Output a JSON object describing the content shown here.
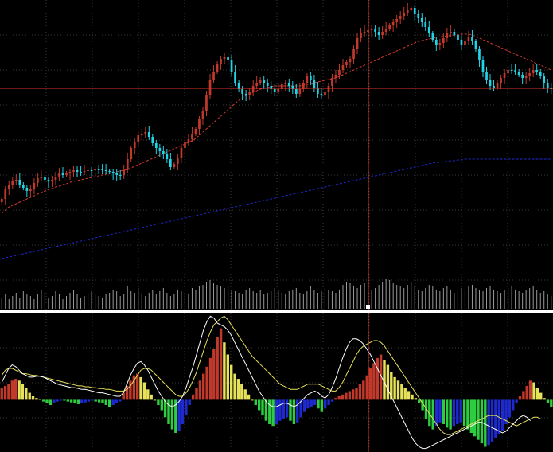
{
  "chart_data": [
    {
      "type": "candlestick",
      "panel": "price",
      "title": "",
      "grid": true,
      "colors": {
        "background": "#000000",
        "grid": "#3a3a3a",
        "bull_candle": "#c0392b",
        "bear_candle": "#22d3e6",
        "ma_fast": "#d63a2e",
        "ma_slow": "#1e2ad0",
        "crosshair": "#e0342a",
        "volume": "#9a9a9a"
      },
      "ylim": [
        0,
        390
      ],
      "closes": [
        250,
        238,
        232,
        228,
        226,
        232,
        236,
        240,
        238,
        230,
        224,
        222,
        226,
        228,
        226,
        222,
        218,
        220,
        218,
        216,
        214,
        216,
        216,
        215,
        214,
        214,
        213,
        213,
        214,
        215,
        216,
        218,
        220,
        220,
        214,
        200,
        186,
        178,
        170,
        168,
        166,
        172,
        180,
        186,
        190,
        194,
        200,
        210,
        206,
        198,
        186,
        178,
        175,
        168,
        162,
        150,
        140,
        120,
        100,
        90,
        80,
        74,
        72,
        76,
        90,
        104,
        112,
        118,
        120,
        116,
        108,
        104,
        100,
        104,
        108,
        112,
        116,
        112,
        106,
        104,
        108,
        112,
        118,
        112,
        104,
        96,
        100,
        110,
        118,
        120,
        116,
        108,
        98,
        94,
        88,
        82,
        78,
        74,
        62,
        48,
        42,
        40,
        38,
        36,
        40,
        44,
        40,
        36,
        32,
        28,
        24,
        20,
        16,
        12,
        10,
        18,
        22,
        28,
        34,
        42,
        50,
        56,
        54,
        48,
        42,
        40,
        44,
        50,
        56,
        52,
        46,
        52,
        62,
        76,
        90,
        100,
        108,
        110,
        104,
        98,
        92,
        88,
        88,
        90,
        94,
        98,
        96,
        92,
        88,
        90,
        96,
        104,
        110,
        112
      ],
      "ma_fast": [
        268,
        264,
        260,
        258,
        256,
        254,
        252,
        250,
        248,
        246,
        244,
        242,
        240,
        238,
        237,
        235,
        234,
        232,
        231,
        229,
        228,
        227,
        226,
        225,
        224,
        223,
        222,
        221,
        220,
        219,
        218,
        217,
        216,
        215,
        214,
        213,
        211,
        209,
        207,
        205,
        203,
        201,
        199,
        197,
        195,
        193,
        191,
        189,
        187,
        185,
        183,
        181,
        179,
        177,
        174,
        170,
        166,
        162,
        158,
        154,
        150,
        146,
        142,
        138,
        134,
        130,
        126,
        123,
        120,
        118,
        116,
        114,
        112,
        111,
        110,
        109,
        108,
        108,
        108,
        108,
        108,
        108,
        108,
        108,
        107,
        106,
        105,
        104,
        103,
        102,
        101,
        100,
        99,
        98,
        96,
        94,
        92,
        90,
        88,
        86,
        84,
        82,
        80,
        78,
        76,
        74,
        72,
        70,
        68,
        66,
        64,
        62,
        60,
        58,
        56,
        54,
        52,
        51,
        50,
        49,
        48,
        47,
        46,
        46,
        45,
        45,
        44,
        44,
        43,
        43,
        43,
        44,
        46,
        48,
        50,
        52,
        54,
        56,
        58,
        60,
        62,
        64,
        66,
        68,
        70,
        72,
        74,
        76,
        78,
        80,
        82,
        84,
        86,
        88
      ],
      "ma_slow": [
        325,
        324,
        323,
        322,
        321,
        320,
        319,
        318,
        317,
        316,
        315,
        314,
        313,
        312,
        311,
        310,
        309,
        308,
        307,
        306,
        305,
        304,
        303,
        302,
        301,
        300,
        299,
        298,
        297,
        296,
        295,
        294,
        293,
        292,
        291,
        290,
        289,
        288,
        287,
        286,
        285,
        284,
        283,
        282,
        281,
        280,
        279,
        278,
        277,
        276,
        275,
        274,
        273,
        272,
        271,
        270,
        269,
        268,
        267,
        266,
        265,
        264,
        263,
        262,
        261,
        260,
        259,
        258,
        257,
        256,
        255,
        254,
        253,
        252,
        251,
        250,
        249,
        248,
        247,
        246,
        245,
        244,
        243,
        242,
        241,
        240,
        239,
        238,
        237,
        236,
        235,
        234,
        233,
        232,
        231,
        230,
        229,
        228,
        227,
        226,
        225,
        224,
        223,
        222,
        221,
        220,
        219,
        218,
        217,
        216,
        215,
        214,
        213,
        212,
        211,
        210,
        209,
        208,
        207,
        206,
        205,
        204,
        204,
        203,
        203,
        202,
        202,
        201,
        201,
        200,
        200,
        200,
        200,
        200,
        200,
        200,
        200,
        200,
        200,
        200,
        200,
        200,
        200,
        200,
        200,
        200,
        200,
        200,
        200,
        200,
        200,
        200,
        200,
        200
      ],
      "volume": [
        14,
        18,
        12,
        16,
        20,
        14,
        22,
        18,
        16,
        12,
        18,
        24,
        20,
        14,
        16,
        22,
        18,
        12,
        16,
        20,
        24,
        18,
        14,
        16,
        20,
        22,
        18,
        16,
        14,
        18,
        20,
        24,
        22,
        16,
        18,
        28,
        22,
        20,
        26,
        18,
        16,
        20,
        24,
        18,
        22,
        26,
        20,
        16,
        18,
        24,
        22,
        20,
        18,
        26,
        24,
        28,
        30,
        34,
        36,
        32,
        30,
        28,
        26,
        30,
        24,
        22,
        20,
        18,
        24,
        26,
        22,
        20,
        24,
        18,
        20,
        22,
        26,
        24,
        20,
        18,
        22,
        24,
        26,
        20,
        18,
        22,
        28,
        24,
        20,
        22,
        26,
        24,
        22,
        20,
        24,
        30,
        34,
        32,
        28,
        26,
        30,
        32,
        28,
        24,
        26,
        30,
        34,
        38,
        36,
        32,
        30,
        28,
        26,
        30,
        34,
        28,
        24,
        22,
        26,
        30,
        28,
        24,
        22,
        26,
        28,
        24,
        20,
        22,
        26,
        24,
        28,
        30,
        26,
        24,
        22,
        26,
        28,
        24,
        22,
        20,
        24,
        26,
        28,
        24,
        22,
        20,
        24,
        26,
        28,
        24,
        20,
        22,
        18,
        16
      ]
    },
    {
      "type": "macd",
      "panel": "oscillator",
      "title": "",
      "grid": true,
      "colors": {
        "pos_rising": "#c0392b",
        "pos_falling": "#e6e25a",
        "neg_falling": "#2ecc40",
        "neg_rising": "#1e2ad0",
        "signal_line": "#e6e25a",
        "macd_line": "#ffffff"
      },
      "ylim": [
        -60,
        100
      ],
      "histogram": [
        14,
        16,
        18,
        22,
        24,
        22,
        18,
        14,
        8,
        4,
        2,
        1,
        -2,
        -4,
        -6,
        -4,
        -2,
        -1,
        -1,
        -2,
        -3,
        -4,
        -5,
        -4,
        -3,
        -2,
        -1,
        -2,
        -3,
        -4,
        -6,
        -8,
        -6,
        -4,
        -2,
        8,
        16,
        22,
        28,
        30,
        26,
        20,
        12,
        6,
        0,
        -6,
        -12,
        -20,
        -28,
        -34,
        -38,
        -36,
        -28,
        -18,
        -6,
        6,
        14,
        22,
        30,
        38,
        48,
        58,
        72,
        82,
        66,
        52,
        40,
        30,
        24,
        18,
        12,
        6,
        0,
        -6,
        -12,
        -18,
        -24,
        -28,
        -30,
        -28,
        -24,
        -22,
        -20,
        -24,
        -28,
        -26,
        -20,
        -14,
        -10,
        -8,
        -6,
        -10,
        -14,
        -10,
        -6,
        -2,
        2,
        4,
        6,
        8,
        10,
        12,
        14,
        18,
        22,
        28,
        36,
        42,
        48,
        52,
        46,
        40,
        32,
        26,
        22,
        18,
        14,
        10,
        6,
        2,
        -4,
        -12,
        -22,
        -30,
        -34,
        -30,
        -26,
        -28,
        -32,
        -34,
        -30,
        -28,
        -26,
        -30,
        -34,
        -38,
        -42,
        -46,
        -50,
        -54,
        -52,
        -48,
        -44,
        -40,
        -36,
        -28,
        -20,
        -12,
        -4,
        4,
        10,
        16,
        22,
        20,
        14,
        8,
        2,
        -4,
        -8
      ],
      "signal": [
        28,
        34,
        36,
        36,
        34,
        32,
        30,
        30,
        29,
        28,
        28,
        27,
        26,
        25,
        24,
        23,
        22,
        21,
        20,
        19,
        18,
        17,
        16,
        16,
        15,
        15,
        14,
        14,
        13,
        13,
        12,
        12,
        11,
        10,
        10,
        10,
        12,
        16,
        22,
        28,
        34,
        36,
        36,
        34,
        30,
        26,
        22,
        18,
        14,
        10,
        6,
        4,
        4,
        8,
        14,
        22,
        32,
        44,
        56,
        68,
        78,
        86,
        90,
        94,
        96,
        92,
        86,
        80,
        74,
        68,
        62,
        56,
        50,
        46,
        42,
        38,
        34,
        30,
        26,
        22,
        18,
        16,
        14,
        12,
        12,
        12,
        14,
        16,
        18,
        18,
        18,
        18,
        16,
        14,
        12,
        10,
        10,
        14,
        20,
        28,
        36,
        44,
        52,
        58,
        62,
        64,
        66,
        68,
        68,
        66,
        62,
        56,
        50,
        44,
        38,
        32,
        26,
        20,
        14,
        8,
        2,
        -4,
        -10,
        -16,
        -22,
        -28,
        -34,
        -38,
        -40,
        -40,
        -38,
        -36,
        -34,
        -32,
        -30,
        -28,
        -26,
        -24,
        -22,
        -20,
        -18,
        -18,
        -18,
        -20,
        -22,
        -24,
        -26,
        -28,
        -30,
        -28,
        -26,
        -24,
        -22,
        -20,
        -20,
        -22
      ],
      "macd": [
        20,
        28,
        36,
        40,
        38,
        34,
        30,
        28,
        26,
        26,
        27,
        27,
        26,
        24,
        22,
        20,
        18,
        17,
        16,
        15,
        14,
        14,
        13,
        12,
        12,
        11,
        10,
        9,
        8,
        8,
        7,
        6,
        5,
        4,
        4,
        8,
        18,
        28,
        36,
        42,
        44,
        40,
        34,
        26,
        18,
        10,
        4,
        -2,
        -6,
        -8,
        -6,
        -2,
        4,
        14,
        26,
        38,
        52,
        66,
        80,
        90,
        96,
        94,
        88,
        86,
        84,
        80,
        74,
        66,
        58,
        50,
        42,
        34,
        26,
        18,
        10,
        4,
        -2,
        -6,
        -8,
        -8,
        -6,
        -4,
        -4,
        -6,
        -8,
        -6,
        -2,
        2,
        6,
        8,
        10,
        8,
        4,
        2,
        6,
        14,
        24,
        36,
        48,
        58,
        66,
        70,
        70,
        68,
        64,
        58,
        52,
        44,
        36,
        28,
        20,
        12,
        4,
        -4,
        -12,
        -20,
        -28,
        -36,
        -44,
        -50,
        -54,
        -56,
        -56,
        -54,
        -52,
        -50,
        -48,
        -46,
        -44,
        -42,
        -40,
        -38,
        -36,
        -34,
        -32,
        -30,
        -28,
        -26,
        -26,
        -28,
        -30,
        -32,
        -34,
        -36,
        -38,
        -36,
        -32,
        -28,
        -24,
        -20,
        -18,
        -20,
        -24
      ]
    }
  ]
}
